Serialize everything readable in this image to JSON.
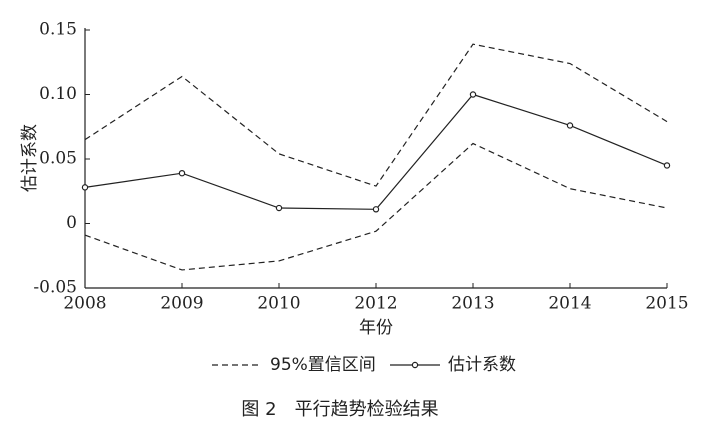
{
  "chart_data": {
    "type": "line",
    "y_label": "估计系数",
    "x_label": "年份",
    "caption": "图 2　平行趋势检验结果",
    "categories": [
      "2008",
      "2009",
      "2010",
      "2012",
      "2013",
      "2014",
      "2015"
    ],
    "series": [
      {
        "name": "95%置信区间",
        "color": "#222222",
        "style": "dashed",
        "upper": [
          0.065,
          0.114,
          0.054,
          0.029,
          0.139,
          0.124,
          0.079
        ],
        "lower": [
          -0.009,
          -0.036,
          -0.029,
          -0.006,
          0.062,
          0.027,
          0.012
        ]
      },
      {
        "name": "估计系数",
        "color": "#222222",
        "style": "solid",
        "markers": true,
        "values": [
          0.028,
          0.039,
          0.012,
          0.011,
          0.1,
          0.076,
          0.045
        ]
      }
    ],
    "ylim": [
      -0.05,
      0.15
    ],
    "yticks": [
      -0.05,
      0,
      0.05,
      {
        "value": 0.1,
        "label": "0.10"
      },
      0.15
    ]
  }
}
